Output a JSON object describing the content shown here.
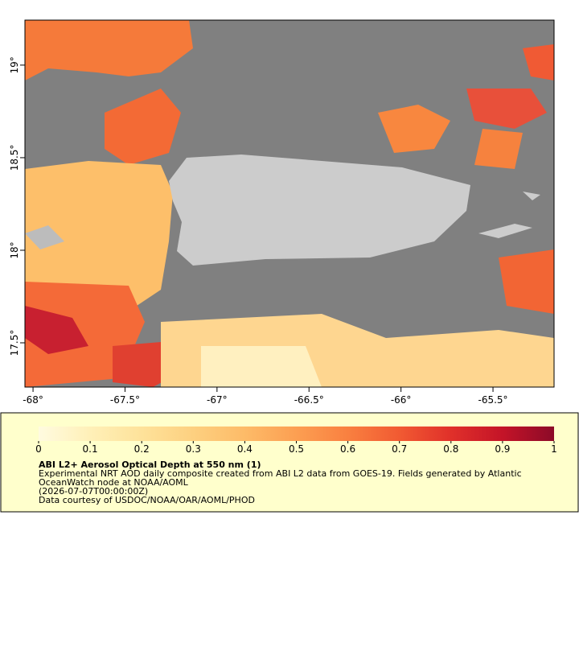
{
  "map": {
    "xlim": [
      -68.044,
      -65.168
    ],
    "ylim": [
      17.261,
      19.243
    ],
    "lon_ticks": [
      {
        "value": -68,
        "label": "-68°"
      },
      {
        "value": -67.5,
        "label": "-67.5°"
      },
      {
        "value": -67,
        "label": "-67°"
      },
      {
        "value": -66.5,
        "label": "-66.5°"
      },
      {
        "value": -66,
        "label": "-66°"
      },
      {
        "value": -65.5,
        "label": "-65.5°"
      }
    ],
    "lat_ticks": [
      {
        "value": 17.5,
        "label": "17.5°"
      },
      {
        "value": 18,
        "label": "18°"
      },
      {
        "value": 18.5,
        "label": "18.5°"
      },
      {
        "value": 19,
        "label": "19°"
      }
    ]
  },
  "colorbar": {
    "lim": [
      0,
      1
    ],
    "ticks": [
      0,
      0.1,
      0.2,
      0.3,
      0.4,
      0.5,
      0.6,
      0.7,
      0.8,
      0.9,
      1
    ],
    "colors": [
      "#fffbe0",
      "#fff0b8",
      "#fee29a",
      "#fdd080",
      "#fdbb68",
      "#fc9f52",
      "#f98040",
      "#f15a32",
      "#e0302a",
      "#c41428",
      "#8c0a28"
    ]
  },
  "caption": {
    "title": "ABI L2+ Aerosol Optical Depth at 550 nm (1)",
    "lines": [
      "Experimental NRT AOD daily composite created from ABI L2 data from GOES-19. Fields generated by Atlantic",
      "OceanWatch node at NOAA/AOML",
      "(2026-07-07T00:00:00Z)",
      "Data courtesy of USDOC/NOAA/OAR/AOML/PHOD"
    ]
  }
}
